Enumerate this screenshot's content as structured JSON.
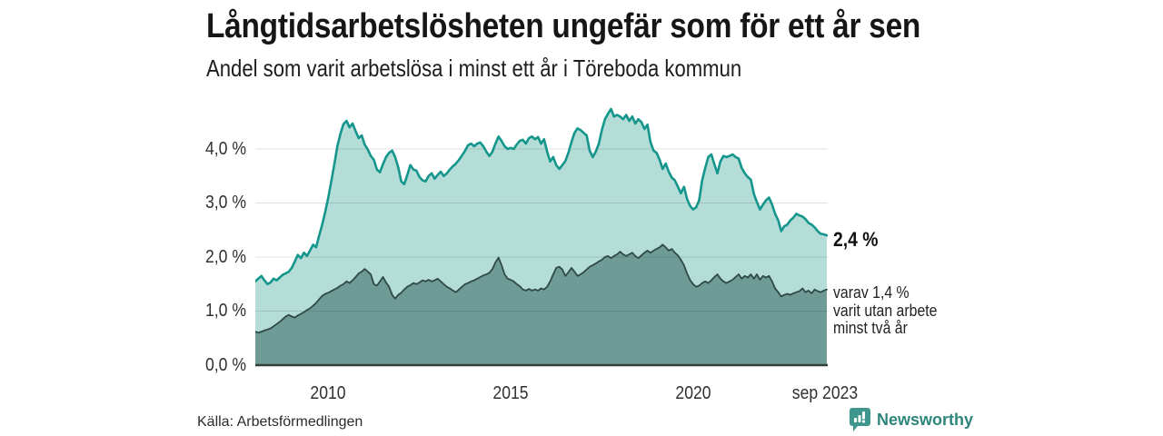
{
  "header": {
    "title": "Långtidsarbetslösheten ungefär som för ett år sen",
    "subtitle": "Andel som varit arbetslösa i minst ett år i Töreboda kommun"
  },
  "chart_data": {
    "type": "area",
    "title": "Långtidsarbetslösheten ungefär som för ett år sen",
    "subtitle": "Andel som varit arbetslösa i minst ett år i Töreboda kommun",
    "unit": "%",
    "frequency": "monthly",
    "x_start": "2008-01",
    "x_end": "2023-09",
    "grid": true,
    "legend_position": "none",
    "ylim": [
      0,
      4.94
    ],
    "y_tick_values": [
      4,
      3,
      2,
      1,
      0
    ],
    "y_tick_labels": [
      "4,0 %",
      "3,0 %",
      "2,0 %",
      "1,0 %",
      "0,0 %"
    ],
    "x_tick_labels": [
      "2010",
      "2015",
      "2020",
      "sep 2023"
    ],
    "series": [
      {
        "name": "Andel arbetslösa minst ett år",
        "line_color": "#14968c",
        "fill_color": "#b5ddd7",
        "latest_label": "2,4 %",
        "values": [
          1.55,
          1.6,
          1.65,
          1.57,
          1.5,
          1.53,
          1.6,
          1.57,
          1.62,
          1.67,
          1.7,
          1.73,
          1.8,
          1.92,
          2.04,
          1.98,
          2.08,
          2.02,
          2.12,
          2.23,
          2.18,
          2.4,
          2.6,
          2.84,
          3.1,
          3.4,
          3.72,
          4.05,
          4.28,
          4.46,
          4.52,
          4.4,
          4.47,
          4.33,
          4.2,
          4.25,
          4.08,
          3.99,
          3.87,
          3.8,
          3.62,
          3.57,
          3.72,
          3.85,
          3.93,
          3.97,
          3.85,
          3.66,
          3.4,
          3.35,
          3.52,
          3.7,
          3.62,
          3.6,
          3.48,
          3.42,
          3.4,
          3.5,
          3.55,
          3.45,
          3.52,
          3.58,
          3.5,
          3.55,
          3.62,
          3.68,
          3.73,
          3.8,
          3.88,
          3.97,
          4.07,
          4.1,
          4.05,
          4.1,
          4.12,
          4.05,
          3.95,
          3.87,
          3.95,
          4.1,
          4.23,
          4.15,
          4.05,
          4.0,
          4.02,
          4.0,
          4.08,
          4.15,
          4.17,
          4.1,
          4.2,
          4.23,
          4.18,
          4.22,
          4.1,
          4.18,
          3.95,
          3.77,
          3.85,
          3.7,
          3.63,
          3.7,
          3.78,
          3.93,
          4.13,
          4.3,
          4.38,
          4.35,
          4.3,
          4.25,
          3.97,
          3.85,
          3.95,
          4.1,
          4.35,
          4.55,
          4.65,
          4.74,
          4.6,
          4.63,
          4.6,
          4.55,
          4.63,
          4.52,
          4.6,
          4.47,
          4.55,
          4.5,
          4.37,
          4.45,
          4.13,
          3.97,
          3.93,
          3.8,
          3.63,
          3.73,
          3.58,
          3.47,
          3.42,
          3.3,
          3.18,
          3.3,
          3.08,
          2.95,
          2.88,
          2.92,
          3.05,
          3.42,
          3.65,
          3.85,
          3.9,
          3.72,
          3.55,
          3.77,
          3.87,
          3.85,
          3.87,
          3.9,
          3.85,
          3.82,
          3.65,
          3.55,
          3.48,
          3.43,
          3.17,
          3.02,
          2.88,
          2.97,
          3.05,
          3.1,
          2.97,
          2.8,
          2.68,
          2.48,
          2.57,
          2.6,
          2.68,
          2.73,
          2.8,
          2.77,
          2.75,
          2.7,
          2.63,
          2.6,
          2.55,
          2.48,
          2.43,
          2.42,
          2.4
        ]
      },
      {
        "name": "Andel arbetslösa minst två år",
        "line_color": "#2f4a46",
        "fill_color": "#6f9b96",
        "latest_label": "varav 1,4 % varit utan arbete minst två år",
        "values": [
          0.62,
          0.6,
          0.62,
          0.64,
          0.66,
          0.68,
          0.72,
          0.76,
          0.8,
          0.85,
          0.9,
          0.93,
          0.9,
          0.88,
          0.92,
          0.95,
          0.98,
          1.02,
          1.05,
          1.1,
          1.15,
          1.22,
          1.28,
          1.32,
          1.34,
          1.37,
          1.4,
          1.43,
          1.47,
          1.5,
          1.55,
          1.52,
          1.57,
          1.63,
          1.7,
          1.73,
          1.78,
          1.73,
          1.68,
          1.5,
          1.47,
          1.55,
          1.63,
          1.53,
          1.45,
          1.3,
          1.23,
          1.3,
          1.34,
          1.4,
          1.45,
          1.48,
          1.52,
          1.5,
          1.53,
          1.57,
          1.55,
          1.58,
          1.55,
          1.57,
          1.6,
          1.55,
          1.5,
          1.45,
          1.42,
          1.38,
          1.35,
          1.4,
          1.45,
          1.5,
          1.52,
          1.55,
          1.57,
          1.6,
          1.63,
          1.66,
          1.68,
          1.71,
          1.78,
          1.9,
          1.99,
          1.85,
          1.68,
          1.6,
          1.58,
          1.55,
          1.5,
          1.46,
          1.4,
          1.38,
          1.41,
          1.38,
          1.4,
          1.38,
          1.42,
          1.4,
          1.45,
          1.55,
          1.68,
          1.8,
          1.82,
          1.77,
          1.65,
          1.72,
          1.8,
          1.73,
          1.65,
          1.68,
          1.72,
          1.77,
          1.82,
          1.85,
          1.88,
          1.92,
          1.95,
          2.0,
          2.02,
          1.98,
          2.02,
          2.05,
          2.1,
          2.05,
          2.02,
          2.05,
          2.08,
          2.02,
          1.98,
          2.03,
          2.08,
          2.12,
          2.08,
          2.12,
          2.15,
          2.18,
          2.23,
          2.18,
          2.12,
          2.15,
          2.08,
          2.03,
          1.95,
          1.85,
          1.7,
          1.58,
          1.5,
          1.45,
          1.47,
          1.52,
          1.55,
          1.52,
          1.57,
          1.63,
          1.68,
          1.6,
          1.55,
          1.52,
          1.55,
          1.58,
          1.63,
          1.68,
          1.6,
          1.65,
          1.62,
          1.68,
          1.6,
          1.68,
          1.58,
          1.65,
          1.62,
          1.65,
          1.55,
          1.42,
          1.35,
          1.27,
          1.3,
          1.32,
          1.3,
          1.33,
          1.35,
          1.37,
          1.42,
          1.35,
          1.38,
          1.33,
          1.4,
          1.37,
          1.35,
          1.38,
          1.4
        ]
      }
    ],
    "annotations": {
      "latest_total": "2,4 %",
      "two_year_line1": "varav 1,4 %",
      "two_year_line2": "varit utan arbete",
      "two_year_line3": "minst två år"
    }
  },
  "colors": {
    "accent_line": "#14968c",
    "accent_fill": "#b5ddd7",
    "dark_line": "#2f4a46",
    "dark_fill": "#6f9b96",
    "gridline": "rgba(0,0,0,0.12)",
    "axis_line": "#333d3c",
    "brand_teal": "#2e857b",
    "brand_icon": "#3e968d"
  },
  "footer": {
    "source": "Källa: Arbetsförmedlingen",
    "brand": "Newsworthy"
  }
}
